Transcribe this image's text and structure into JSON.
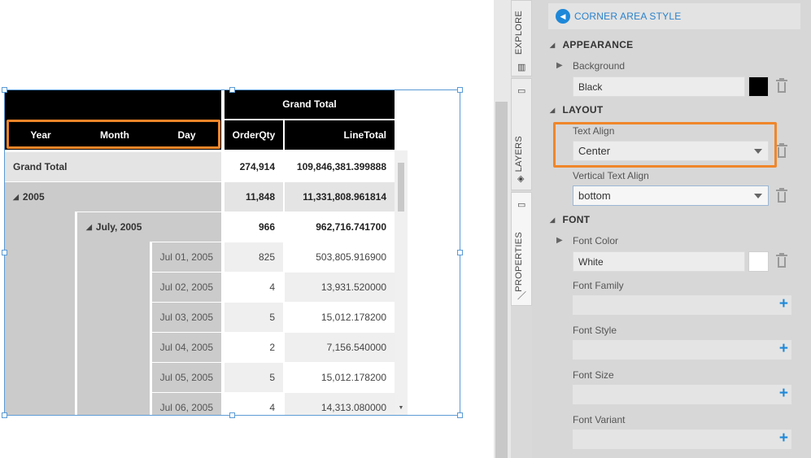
{
  "pivot": {
    "corner_headers": [
      "Year",
      "Month",
      "Day"
    ],
    "column_group": "Grand Total",
    "measures": [
      "OrderQty",
      "LineTotal"
    ],
    "grand_total_row": {
      "label": "Grand Total",
      "orderqty": "274,914",
      "linetotal": "109,846,381.399888"
    },
    "year_row": {
      "label": "2005",
      "orderqty": "11,848",
      "linetotal": "11,331,808.961814"
    },
    "month_row": {
      "label": "July, 2005",
      "orderqty": "966",
      "linetotal": "962,716.741700"
    },
    "day_rows": [
      {
        "label": "Jul 01, 2005",
        "orderqty": "825",
        "linetotal": "503,805.916900"
      },
      {
        "label": "Jul 02, 2005",
        "orderqty": "4",
        "linetotal": "13,931.520000"
      },
      {
        "label": "Jul 03, 2005",
        "orderqty": "5",
        "linetotal": "15,012.178200"
      },
      {
        "label": "Jul 04, 2005",
        "orderqty": "2",
        "linetotal": "7,156.540000"
      },
      {
        "label": "Jul 05, 2005",
        "orderqty": "5",
        "linetotal": "15,012.178200"
      },
      {
        "label": "Jul 06, 2005",
        "orderqty": "4",
        "linetotal": "14,313.080000"
      }
    ]
  },
  "tabs": {
    "explore": "EXPLORE",
    "layers": "LAYERS",
    "properties": "PROPERTIES"
  },
  "panel": {
    "title": "CORNER AREA STYLE",
    "appearance": {
      "heading": "APPEARANCE",
      "background_label": "Background",
      "background_value": "Black",
      "background_color": "#000000"
    },
    "layout": {
      "heading": "LAYOUT",
      "text_align_label": "Text Align",
      "text_align_value": "Center",
      "vertical_text_align_label": "Vertical Text Align",
      "vertical_text_align_value": "bottom"
    },
    "font": {
      "heading": "FONT",
      "font_color_label": "Font Color",
      "font_color_value": "White",
      "font_color": "#ffffff",
      "font_family_label": "Font Family",
      "font_style_label": "Font Style",
      "font_size_label": "Font Size",
      "font_variant_label": "Font Variant"
    }
  },
  "colors": {
    "accent": "#1e88d8",
    "highlight": "#f0862a",
    "header_bg": "#000000"
  }
}
